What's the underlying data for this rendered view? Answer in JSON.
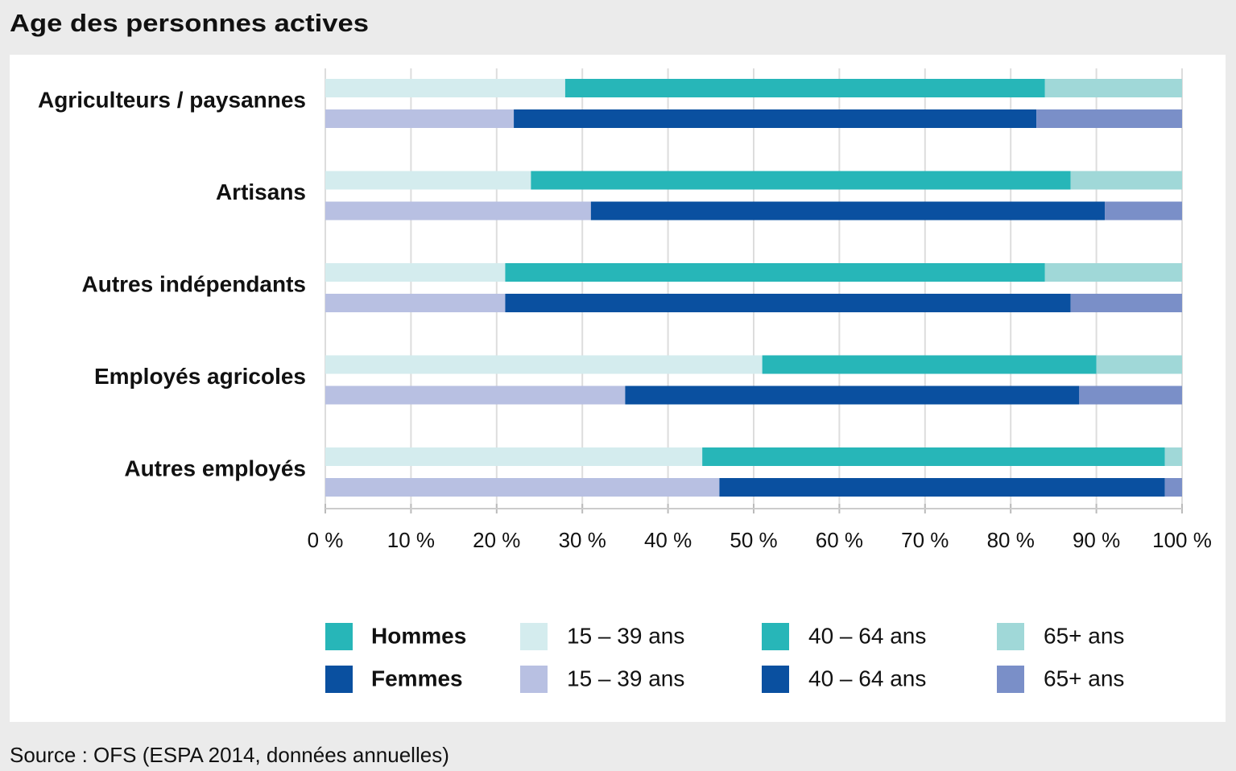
{
  "chart_data": {
    "type": "stacked-bar-horizontal",
    "title": "Age des personnes actives",
    "source": "Source : OFS (ESPA 2014, données annuelles)",
    "categories": [
      "Agriculteurs / paysannes",
      "Artisans",
      "Autres indépendants",
      "Employés agricoles",
      "Autres employés"
    ],
    "groups": [
      {
        "name": "Hommes",
        "color": "#27b6b8",
        "series": [
          {
            "name": "15 – 39 ans",
            "color": "#d4ecee",
            "values": [
              28,
              24,
              21,
              51,
              44
            ]
          },
          {
            "name": "40 – 64 ans",
            "color": "#27b6b8",
            "values": [
              56,
              63,
              63,
              39,
              54
            ]
          },
          {
            "name": "65+ ans",
            "color": "#a0d8d8",
            "values": [
              16,
              13,
              16,
              10,
              2
            ]
          }
        ]
      },
      {
        "name": "Femmes",
        "color": "#0a50a0",
        "series": [
          {
            "name": "15 – 39 ans",
            "color": "#b8c0e2",
            "values": [
              22,
              31,
              21,
              35,
              46
            ]
          },
          {
            "name": "40 – 64 ans",
            "color": "#0a50a0",
            "values": [
              61,
              60,
              66,
              53,
              52
            ]
          },
          {
            "name": "65+ ans",
            "color": "#7a8fc8",
            "values": [
              17,
              9,
              13,
              12,
              2
            ]
          }
        ]
      }
    ],
    "xlim": [
      0,
      100
    ],
    "xticks": [
      {
        "value": 0,
        "label": "0 %"
      },
      {
        "value": 10,
        "label": "10 %"
      },
      {
        "value": 20,
        "label": "20 %"
      },
      {
        "value": 30,
        "label": "30 %"
      },
      {
        "value": 40,
        "label": "40 %"
      },
      {
        "value": 50,
        "label": "50 %"
      },
      {
        "value": 60,
        "label": "60 %"
      },
      {
        "value": 70,
        "label": "70 %"
      },
      {
        "value": 80,
        "label": "80 %"
      },
      {
        "value": 90,
        "label": "90 %"
      },
      {
        "value": 100,
        "label": "100 %"
      }
    ],
    "grid": true
  }
}
